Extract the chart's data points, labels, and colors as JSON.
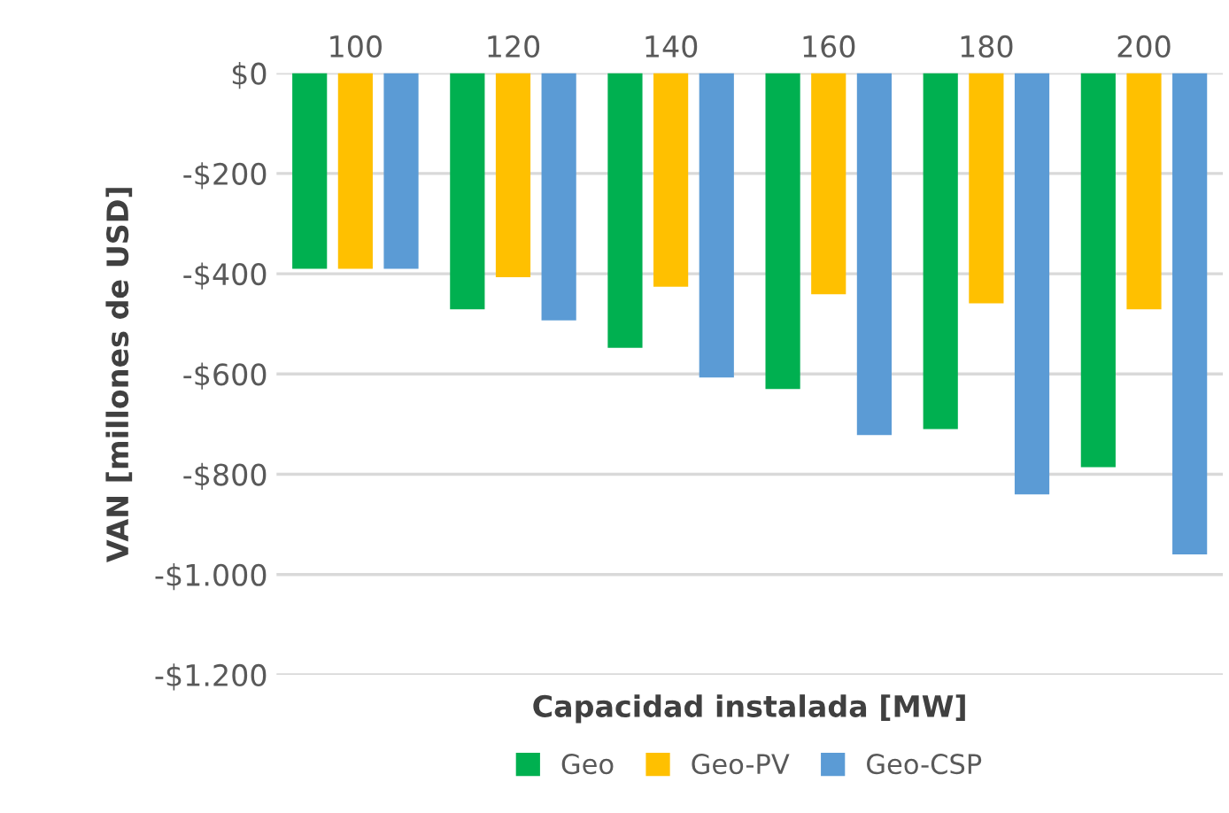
{
  "chart_data": {
    "type": "bar",
    "categories": [
      "100",
      "120",
      "140",
      "160",
      "180",
      "200"
    ],
    "series": [
      {
        "name": "Geo",
        "color": "#00b050",
        "values": [
          -390,
          -471,
          -548,
          -630,
          -710,
          -786
        ]
      },
      {
        "name": "Geo-PV",
        "color": "#ffc000",
        "values": [
          -390,
          -407,
          -426,
          -441,
          -459,
          -471
        ]
      },
      {
        "name": "Geo-CSP",
        "color": "#5b9bd5",
        "values": [
          -390,
          -493,
          -607,
          -722,
          -840,
          -960
        ]
      }
    ],
    "xlabel": "Capacidad instalada [MW]",
    "ylabel": "VAN [millones de USD]",
    "ylim": [
      -1200,
      0
    ],
    "yticks": [
      {
        "value": 0,
        "label": "$0"
      },
      {
        "value": -200,
        "label": "-$200"
      },
      {
        "value": -400,
        "label": "-$400"
      },
      {
        "value": -600,
        "label": "-$600"
      },
      {
        "value": -800,
        "label": "-$800"
      },
      {
        "value": -1000,
        "label": "-$1.000"
      },
      {
        "value": -1200,
        "label": "-$1.200"
      }
    ],
    "grid": "y",
    "legend": "bottom"
  }
}
